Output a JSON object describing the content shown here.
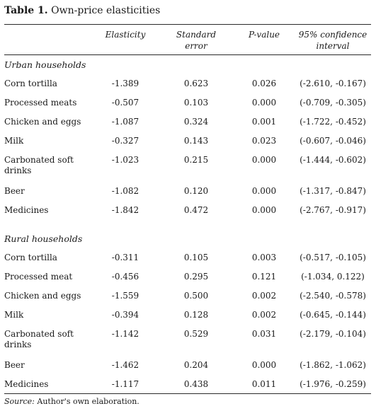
{
  "title": {
    "prefix": "Table 1.",
    "text": " Own-price elasticities"
  },
  "columns": {
    "elasticity": "Elasticity",
    "standard_error_line1": "Standard",
    "standard_error_line2": "error",
    "p_value": "P-value",
    "ci_line1": "95% confidence",
    "ci_line2": "interval"
  },
  "urban": {
    "heading": "Urban households",
    "rows": [
      {
        "label": "Corn tortilla",
        "elasticity": "-1.389",
        "se": "0.623",
        "p": "0.026",
        "ci": "(-2.610, -0.167)"
      },
      {
        "label": "Processed meats",
        "elasticity": "-0.507",
        "se": "0.103",
        "p": "0.000",
        "ci": "(-0.709, -0.305)"
      },
      {
        "label": "Chicken and eggs",
        "elasticity": "-1.087",
        "se": "0.324",
        "p": "0.001",
        "ci": "(-1.722, -0.452)"
      },
      {
        "label": "Milk",
        "elasticity": "-0.327",
        "se": "0.143",
        "p": "0.023",
        "ci": "(-0.607, -0.046)"
      },
      {
        "label": "Carbonated soft drinks",
        "elasticity": "-1.023",
        "se": "0.215",
        "p": "0.000",
        "ci": "(-1.444, -0.602)"
      },
      {
        "label": "Beer",
        "elasticity": "-1.082",
        "se": "0.120",
        "p": "0.000",
        "ci": "(-1.317, -0.847)"
      },
      {
        "label": "Medicines",
        "elasticity": "-1.842",
        "se": "0.472",
        "p": "0.000",
        "ci": "(-2.767, -0.917)"
      }
    ]
  },
  "rural": {
    "heading": "Rural households",
    "rows": [
      {
        "label": "Corn tortilla",
        "elasticity": "-0.311",
        "se": "0.105",
        "p": "0.003",
        "ci": "(-0.517, -0.105)"
      },
      {
        "label": "Processed meat",
        "elasticity": "-0.456",
        "se": "0.295",
        "p": "0.121",
        "ci": "(-1.034, 0.122)"
      },
      {
        "label": "Chicken and eggs",
        "elasticity": "-1.559",
        "se": "0.500",
        "p": "0.002",
        "ci": "(-2.540, -0.578)"
      },
      {
        "label": "Milk",
        "elasticity": "-0.394",
        "se": "0.128",
        "p": "0.002",
        "ci": "(-0.645, -0.144)"
      },
      {
        "label": "Carbonated soft drinks",
        "elasticity": "-1.142",
        "se": "0.529",
        "p": "0.031",
        "ci": "(-2.179, -0.104)"
      },
      {
        "label": "Beer",
        "elasticity": "-1.462",
        "se": "0.204",
        "p": "0.000",
        "ci": "(-1.862, -1.062)"
      },
      {
        "label": "Medicines",
        "elasticity": "-1.117",
        "se": "0.438",
        "p": "0.011",
        "ci": "(-1.976, -0.259)"
      }
    ]
  },
  "source": {
    "label": "Source:",
    "text": " Author's own elaboration."
  }
}
